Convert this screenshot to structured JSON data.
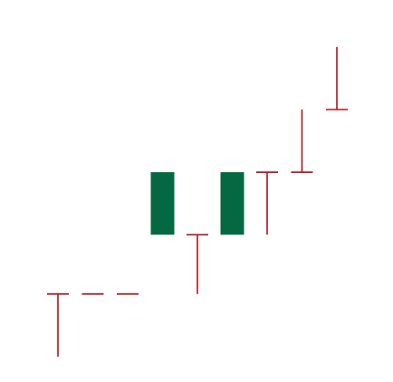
{
  "chart_data": {
    "type": "candlestick",
    "title": "",
    "xlabel": "",
    "ylabel": "",
    "axes_visible": false,
    "grid": false,
    "legend": "none",
    "ylim": [
      0,
      10
    ],
    "colors": {
      "up": "#046943",
      "down": "#b0131e"
    },
    "candles": [
      {
        "open": 1.9,
        "high": 1.9,
        "low": 0.0,
        "close": 1.9
      },
      {
        "open": 1.9,
        "high": 1.9,
        "low": 1.9,
        "close": 1.9
      },
      {
        "open": 1.9,
        "high": 1.9,
        "low": 1.9,
        "close": 1.9
      },
      {
        "open": 3.7,
        "high": 5.6,
        "low": 3.7,
        "close": 5.6
      },
      {
        "open": 3.7,
        "high": 3.7,
        "low": 1.9,
        "close": 3.7
      },
      {
        "open": 3.7,
        "high": 5.6,
        "low": 3.7,
        "close": 5.6
      },
      {
        "open": 5.6,
        "high": 5.6,
        "low": 3.7,
        "close": 5.6
      },
      {
        "open": 5.6,
        "high": 7.5,
        "low": 5.6,
        "close": 5.6
      },
      {
        "open": 7.5,
        "high": 9.4,
        "low": 7.5,
        "close": 7.5
      }
    ]
  }
}
